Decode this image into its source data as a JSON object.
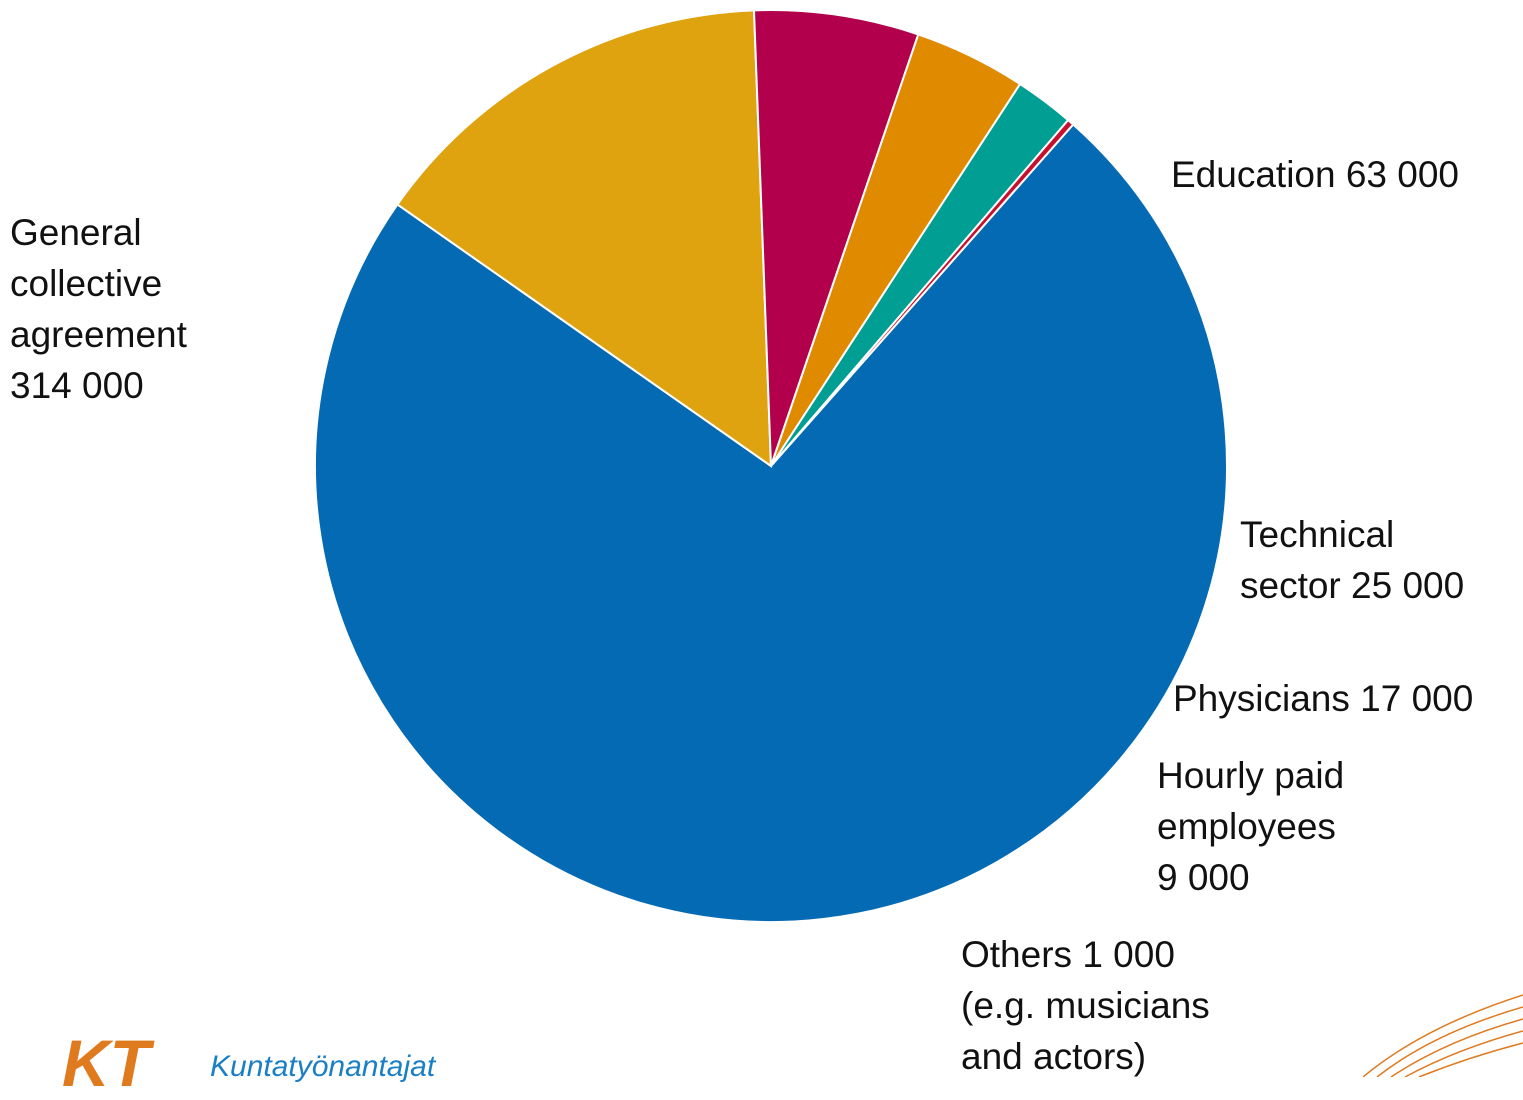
{
  "chart_data": {
    "type": "pie",
    "title": "",
    "start_angle_deg": 48.5,
    "direction": "clockwise",
    "slices": [
      {
        "name": "General collective agreement",
        "value": 314000,
        "label": "General\ncollective\nagreement\n314 000",
        "color": "#046ab3"
      },
      {
        "name": "Education",
        "value": 63000,
        "label": "Education 63 000",
        "color": "#e0a310"
      },
      {
        "name": "Technical sector",
        "value": 25000,
        "label": "Technical\nsector 25 000",
        "color": "#b3004c"
      },
      {
        "name": "Physicians",
        "value": 17000,
        "label": "Physicians 17 000",
        "color": "#e08a00"
      },
      {
        "name": "Hourly paid employees",
        "value": 9000,
        "label": "Hourly paid\nemployees\n9 000",
        "color": "#009e93"
      },
      {
        "name": "Others",
        "value": 1000,
        "label": "Others 1 000\n(e.g. musicians\nand actors)",
        "color": "#c8102e"
      }
    ]
  },
  "logo": {
    "mark": "KT",
    "text": "Kuntatyönantajat"
  },
  "colors": {
    "logo_orange": "#e07a1f",
    "logo_blue": "#1a7fc4"
  }
}
